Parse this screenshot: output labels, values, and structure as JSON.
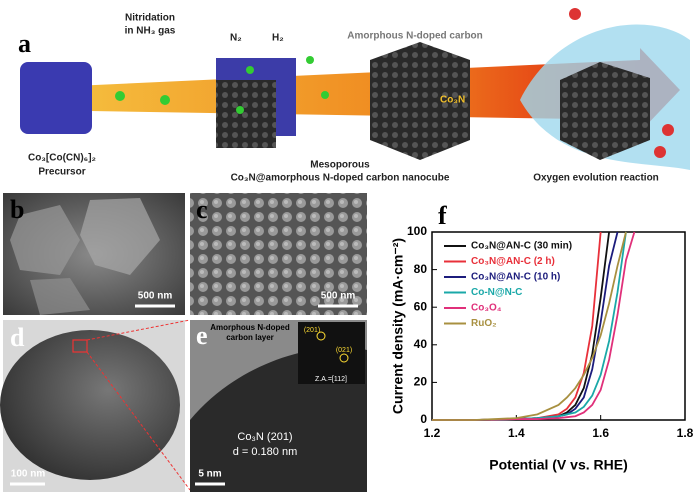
{
  "figure": {
    "panel_a": {
      "label": "a",
      "step_1": "Nitridation",
      "step_2": "in NH₃ gas",
      "n2": "N₂",
      "h2": "H₂",
      "carbon": "Amorphous N-doped carbon",
      "co3n": "Co₃N",
      "precursor_1": "Co₃[Co(CN)₆]₂",
      "precursor_2": "Precursor",
      "product_1": "Mesoporous",
      "product_2": "Co₃N@amorphous N-doped carbon nanocube",
      "oer": "Oxygen evolution reaction"
    },
    "panel_b": {
      "label": "b",
      "scale": "500 nm"
    },
    "panel_c": {
      "label": "c",
      "scale": "500 nm"
    },
    "panel_d": {
      "label": "d",
      "scale": "100 nm"
    },
    "panel_e": {
      "label": "e",
      "layer_1": "Amorphous N-doped",
      "layer_2": "carbon layer",
      "spot_1": "(201)",
      "spot_2": "(021)",
      "zone_axis": "Z.A.=[112]",
      "plane": "Co₃N (201)",
      "spacing": "d = 0.180 nm",
      "scale": "5 nm"
    },
    "panel_f": {
      "label": "f"
    }
  },
  "chart_data": {
    "type": "line",
    "x_label": "Potential (V vs. RHE)",
    "y_label": "Current density (mA·cm⁻²)",
    "x": [
      1.2,
      1.3,
      1.4,
      1.45,
      1.5,
      1.52,
      1.54,
      1.56,
      1.58,
      1.6,
      1.62,
      1.64,
      1.66,
      1.68
    ],
    "series": [
      {
        "name": "Co₃N@AN-C (30 min)",
        "color": "#111111",
        "values": [
          0,
          0,
          0.5,
          1,
          2,
          4,
          8,
          17,
          35,
          65,
          100,
          null,
          null,
          null
        ]
      },
      {
        "name": "Co₃N@AN-C (2 h)",
        "color": "#e8303a",
        "values": [
          0,
          0,
          0.5,
          1,
          3,
          6,
          12,
          25,
          50,
          100,
          null,
          null,
          null,
          null
        ]
      },
      {
        "name": "Co₃N@AN-C (10 h)",
        "color": "#1c1c7c",
        "values": [
          0,
          0,
          0.5,
          1,
          2,
          3,
          6,
          12,
          27,
          52,
          82,
          100,
          null,
          null
        ]
      },
      {
        "name": "Co-N@N-C",
        "color": "#1aa8a8",
        "values": [
          0,
          0,
          0.5,
          1,
          2,
          3,
          4,
          7,
          13,
          24,
          42,
          68,
          100,
          null
        ]
      },
      {
        "name": "Co₃O₄",
        "color": "#e0307a",
        "values": [
          0,
          0,
          0.5,
          0.5,
          1,
          1.5,
          2,
          4,
          8,
          16,
          32,
          56,
          85,
          100
        ]
      },
      {
        "name": "RuO₂",
        "color": "#a89040",
        "values": [
          0,
          0,
          1,
          3,
          8,
          12,
          17,
          24,
          33,
          45,
          62,
          82,
          100,
          null
        ]
      }
    ],
    "xlim": [
      1.2,
      1.8
    ],
    "xticks": [
      1.2,
      1.4,
      1.6,
      1.8
    ],
    "ylim": [
      0,
      100
    ],
    "yticks": [
      0,
      20,
      40,
      60,
      80,
      100
    ],
    "legend": "upper left"
  }
}
